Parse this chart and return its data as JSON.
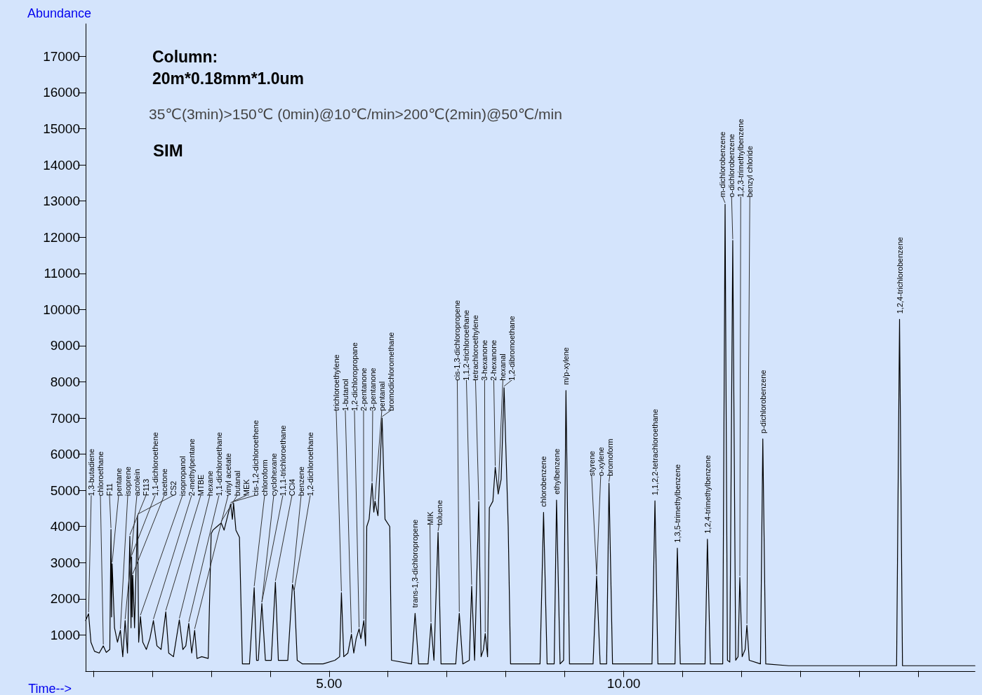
{
  "chart_data": {
    "type": "line",
    "title": "Column:",
    "subtitle": "20m*0.18mm*1.0um",
    "xlabel": "Time-->",
    "ylabel": "Abundance",
    "color": "#000000",
    "marker": "none",
    "grid": false,
    "xlim": [
      0.87,
      15.96
    ],
    "ylim": [
      0,
      17900
    ],
    "xticks": [
      {
        "value": 1,
        "label": null
      },
      {
        "value": 2,
        "label": null
      },
      {
        "value": 3,
        "label": null
      },
      {
        "value": 4,
        "label": null
      },
      {
        "value": 5,
        "label": "5.00"
      },
      {
        "value": 6,
        "label": null
      },
      {
        "value": 7,
        "label": null
      },
      {
        "value": 8,
        "label": null
      },
      {
        "value": 9,
        "label": null
      },
      {
        "value": 10,
        "label": "10.00"
      },
      {
        "value": 11,
        "label": null
      },
      {
        "value": 12,
        "label": null
      },
      {
        "value": 13,
        "label": null
      },
      {
        "value": 14,
        "label": null
      },
      {
        "value": 15,
        "label": null
      }
    ],
    "yticks": [
      1000,
      2000,
      3000,
      4000,
      5000,
      6000,
      7000,
      8000,
      9000,
      10000,
      11000,
      12000,
      13000,
      14000,
      15000,
      16000,
      17000
    ],
    "x": [
      0.87,
      0.92,
      0.96,
      1.02,
      1.1,
      1.17,
      1.22,
      1.28,
      1.3,
      1.31,
      1.32,
      1.36,
      1.41,
      1.46,
      1.5,
      1.54,
      1.58,
      1.62,
      1.64,
      1.65,
      1.66,
      1.67,
      1.7,
      1.75,
      1.77,
      1.8,
      1.84,
      1.9,
      1.96,
      2.02,
      2.08,
      2.15,
      2.23,
      2.28,
      2.36,
      2.46,
      2.52,
      2.57,
      2.62,
      2.67,
      2.72,
      2.76,
      2.84,
      2.95,
      3.0,
      3.03,
      3.1,
      3.17,
      3.22,
      3.28,
      3.33,
      3.36,
      3.38,
      3.42,
      3.48,
      3.53,
      3.55,
      3.65,
      3.73,
      3.77,
      3.8,
      3.86,
      3.92,
      4.02,
      4.09,
      4.14,
      4.3,
      4.38,
      4.41,
      4.46,
      4.55,
      4.9,
      5.1,
      5.18,
      5.21,
      5.25,
      5.32,
      5.38,
      5.42,
      5.46,
      5.51,
      5.54,
      5.59,
      5.62,
      5.64,
      5.68,
      5.73,
      5.76,
      5.78,
      5.83,
      5.9,
      5.95,
      6.03,
      6.06,
      6.4,
      6.46,
      6.52,
      6.68,
      6.73,
      6.78,
      6.85,
      6.9,
      7.15,
      7.21,
      7.27,
      7.38,
      7.42,
      7.47,
      7.54,
      7.58,
      7.62,
      7.65,
      7.69,
      7.72,
      7.78,
      7.82,
      7.87,
      7.92,
      7.97,
      8.04,
      8.08,
      8.58,
      8.64,
      8.7,
      8.82,
      8.86,
      8.92,
      8.98,
      9.02,
      9.08,
      9.48,
      9.54,
      9.6,
      9.71,
      9.75,
      9.81,
      10.48,
      10.53,
      10.58,
      10.87,
      10.91,
      10.96,
      11.38,
      11.42,
      11.47,
      11.68,
      11.72,
      11.76,
      11.8,
      11.85,
      11.9,
      11.94,
      11.97,
      12.01,
      12.06,
      12.09,
      12.13,
      12.32,
      12.36,
      12.41,
      12.8,
      14.63,
      14.68,
      14.73,
      15.96
    ],
    "values": [
      1400,
      1590,
      800,
      550,
      500,
      700,
      520,
      600,
      3920,
      1500,
      2970,
      1200,
      800,
      1130,
      400,
      1400,
      500,
      3730,
      1200,
      3160,
      1500,
      2650,
      1200,
      4300,
      800,
      1510,
      800,
      600,
      900,
      1400,
      700,
      600,
      1640,
      500,
      400,
      1420,
      600,
      700,
      1320,
      500,
      1130,
      350,
      400,
      350,
      3800,
      3900,
      4000,
      4100,
      3900,
      4300,
      4620,
      4200,
      4650,
      3900,
      3700,
      200,
      200,
      200,
      2310,
      300,
      300,
      1870,
      300,
      300,
      2460,
      300,
      300,
      2400,
      2210,
      300,
      200,
      200,
      300,
      400,
      2170,
      400,
      500,
      1020,
      500,
      900,
      1170,
      900,
      1400,
      700,
      4000,
      4200,
      5200,
      4400,
      4700,
      4300,
      7000,
      4200,
      4000,
      300,
      200,
      1600,
      200,
      200,
      1320,
      300,
      3840,
      200,
      200,
      1600,
      200,
      300,
      2350,
      300,
      4690,
      400,
      600,
      1040,
      400,
      4520,
      4700,
      5640,
      4900,
      5300,
      7840,
      4000,
      200,
      200,
      4390,
      200,
      200,
      4730,
      200,
      300,
      7760,
      200,
      200,
      2630,
      200,
      200,
      5200,
      200,
      200,
      4710,
      200,
      200,
      3400,
      200,
      200,
      3650,
      200,
      200,
      12910,
      300,
      250,
      11910,
      300,
      400,
      2590,
      400,
      600,
      1270,
      300,
      200,
      6420,
      200,
      150,
      150,
      9730,
      150,
      150
    ],
    "annotations": [
      "35℃(3min)>150℃ (0min)@10℃/min>200℃(2min)@50℃/min",
      "SIM",
      {
        "text": "1,3-butadiene",
        "x": 0.92,
        "y": 1590
      },
      {
        "text": "chloroethane",
        "x": 1.17,
        "y": 700
      },
      {
        "text": "F11",
        "x": 1.3,
        "y": 3920
      },
      {
        "text": "pentane",
        "x": 1.32,
        "y": 2970
      },
      {
        "text": "isoprene",
        "x": 1.46,
        "y": 1130
      },
      {
        "text": "acrolein",
        "x": 1.54,
        "y": 1400
      },
      {
        "text": "F113",
        "x": 1.62,
        "y": 3730
      },
      {
        "text": "1,1-dichloroethene",
        "x": 1.65,
        "y": 3160
      },
      {
        "text": "acetone",
        "x": 1.67,
        "y": 2650
      },
      {
        "text": "CS2",
        "x": 1.75,
        "y": 4300
      },
      {
        "text": "isopropanol",
        "x": 1.8,
        "y": 1510
      },
      {
        "text": "2-methylpentane",
        "x": 2.02,
        "y": 1400
      },
      {
        "text": "MTBE",
        "x": 2.23,
        "y": 1640
      },
      {
        "text": "hexane",
        "x": 2.46,
        "y": 1420
      },
      {
        "text": "1,1-dichloroethane",
        "x": 2.62,
        "y": 1320
      },
      {
        "text": "vinyl acetate",
        "x": 2.72,
        "y": 1130
      },
      {
        "text": "butanal",
        "x": 3.17,
        "y": 4100
      },
      {
        "text": "MEK",
        "x": 3.33,
        "y": 4620
      },
      {
        "text": "cis-1,2-dichloroethene",
        "x": 3.38,
        "y": 4650
      },
      {
        "text": "chloroform",
        "x": 3.73,
        "y": 2310
      },
      {
        "text": "cyclohexane",
        "x": 3.86,
        "y": 1870
      },
      {
        "text": "1,1,1-trichloroethane",
        "x": 3.86,
        "y": 1870
      },
      {
        "text": "CCl4",
        "x": 4.09,
        "y": 2460
      },
      {
        "text": "benzene",
        "x": 4.38,
        "y": 2400
      },
      {
        "text": "1,2-dichloroethane",
        "x": 4.41,
        "y": 2210
      },
      {
        "text": "trichloroethylene",
        "x": 5.21,
        "y": 2170
      },
      {
        "text": "1-butanol",
        "x": 5.38,
        "y": 1020
      },
      {
        "text": "1,2-dichloropropane",
        "x": 5.51,
        "y": 1170
      },
      {
        "text": "2-pentanone",
        "x": 5.59,
        "y": 1400
      },
      {
        "text": "3-pentanone",
        "x": 5.73,
        "y": 5200
      },
      {
        "text": "pentanal",
        "x": 5.78,
        "y": 4700
      },
      {
        "text": "bromodichloromethane",
        "x": 5.9,
        "y": 7000
      },
      {
        "text": "trans-1,3-dichloropropene",
        "x": 6.46,
        "y": 1600
      },
      {
        "text": "MIK",
        "x": 6.73,
        "y": 1320
      },
      {
        "text": "toluene",
        "x": 6.85,
        "y": 3840
      },
      {
        "text": "cis-1,3-dichloropropene",
        "x": 7.21,
        "y": 1600
      },
      {
        "text": "1,1,2-trichloroethane",
        "x": 7.42,
        "y": 2350
      },
      {
        "text": "tetrachloroethylene",
        "x": 7.54,
        "y": 4690
      },
      {
        "text": "3-hexanone",
        "x": 7.65,
        "y": 1040
      },
      {
        "text": "2-hexanone",
        "x": 7.82,
        "y": 5640
      },
      {
        "text": "hexanal",
        "x": 7.87,
        "y": 4900
      },
      {
        "text": "1,2-dibromoethane",
        "x": 7.97,
        "y": 7840
      },
      {
        "text": "chlorobenzene",
        "x": 8.64,
        "y": 4390
      },
      {
        "text": "ethylbenzene",
        "x": 8.86,
        "y": 4730
      },
      {
        "text": "m/p-xylene",
        "x": 9.02,
        "y": 7760
      },
      {
        "text": "styrene",
        "x": 9.54,
        "y": 2630
      },
      {
        "text": "o-xylene",
        "x": 9.54,
        "y": 2630
      },
      {
        "text": "bromoform",
        "x": 9.75,
        "y": 5200
      },
      {
        "text": "1,1,2,2-tetrachloroethane",
        "x": 10.53,
        "y": 4710
      },
      {
        "text": "1,3,5-trimethylbenzene",
        "x": 10.91,
        "y": 3400
      },
      {
        "text": "1,2,4-trimethylbenzene",
        "x": 11.42,
        "y": 3650
      },
      {
        "text": "m-dichlorobenzene",
        "x": 11.72,
        "y": 12910
      },
      {
        "text": "o-dichlorobenzene",
        "x": 11.85,
        "y": 11910
      },
      {
        "text": "1,2,3-trimethylbenzene",
        "x": 11.97,
        "y": 2590
      },
      {
        "text": "benzyl chloride",
        "x": 12.09,
        "y": 1270
      },
      {
        "text": "p-dichlorobenzene",
        "x": 12.36,
        "y": 6420
      },
      {
        "text": "1,2,4-trichlorobenzene",
        "x": 14.68,
        "y": 9730
      }
    ]
  }
}
